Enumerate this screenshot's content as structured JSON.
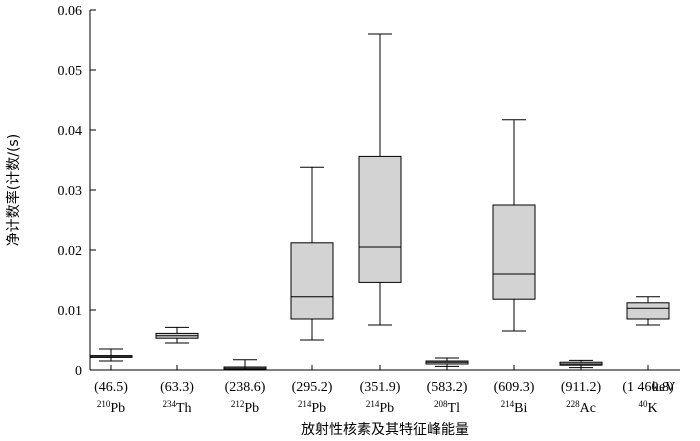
{
  "chart_data": {
    "type": "box",
    "xlabel": "放射性核素及其特征峰能量",
    "ylabel": "净计数率(计数/(s)",
    "x_unit": "keV",
    "ylim": [
      0,
      0.06
    ],
    "yticks": [
      "0",
      "0.01",
      "0.02",
      "0.03",
      "0.04",
      "0.05",
      "0.06"
    ],
    "box_color": "#d3d3d3",
    "categories": [
      {
        "energy": "(46.5)",
        "mass": "210",
        "element": "Pb",
        "whisker_low": 0.0015,
        "q1": 0.0021,
        "median": 0.0022,
        "q3": 0.0024,
        "whisker_high": 0.0035
      },
      {
        "energy": "(63.3)",
        "mass": "234",
        "element": "Th",
        "whisker_low": 0.0045,
        "q1": 0.0053,
        "median": 0.0057,
        "q3": 0.0061,
        "whisker_high": 0.0071
      },
      {
        "energy": "(238.6)",
        "mass": "212",
        "element": "Pb",
        "whisker_low": 0.0,
        "q1": 0.0001,
        "median": 0.0003,
        "q3": 0.0005,
        "whisker_high": 0.0017
      },
      {
        "energy": "(295.2)",
        "mass": "214",
        "element": "Pb",
        "whisker_low": 0.005,
        "q1": 0.0085,
        "median": 0.0122,
        "q3": 0.0212,
        "whisker_high": 0.0338
      },
      {
        "energy": "(351.9)",
        "mass": "214",
        "element": "Pb",
        "whisker_low": 0.0075,
        "q1": 0.0146,
        "median": 0.0205,
        "q3": 0.0356,
        "whisker_high": 0.056
      },
      {
        "energy": "(583.2)",
        "mass": "208",
        "element": "Tl",
        "whisker_low": 0.0006,
        "q1": 0.001,
        "median": 0.0013,
        "q3": 0.0015,
        "whisker_high": 0.002
      },
      {
        "energy": "(609.3)",
        "mass": "214",
        "element": "Bi",
        "whisker_low": 0.0065,
        "q1": 0.0118,
        "median": 0.016,
        "q3": 0.0275,
        "whisker_high": 0.0417
      },
      {
        "energy": "(911.2)",
        "mass": "228",
        "element": "Ac",
        "whisker_low": 0.0004,
        "q1": 0.0008,
        "median": 0.001,
        "q3": 0.0013,
        "whisker_high": 0.0016
      },
      {
        "energy": "(1 460.8)",
        "mass": "40",
        "element": "K",
        "whisker_low": 0.0075,
        "q1": 0.0085,
        "median": 0.0103,
        "q3": 0.0112,
        "whisker_high": 0.0122
      }
    ]
  }
}
